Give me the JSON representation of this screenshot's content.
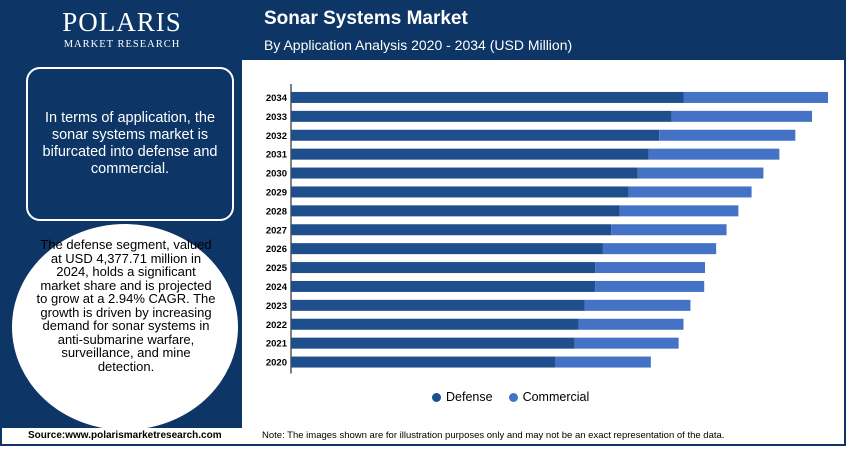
{
  "brand": {
    "name": "POLARIS",
    "tagline": "MARKET RESEARCH"
  },
  "header": {
    "title": "Sonar Systems Market",
    "subtitle": "By Application Analysis 2020 - 2034 (USD Million)"
  },
  "sidebar": {
    "box_text": "In terms of application, the sonar systems market is bifurcated into defense and commercial.",
    "oval_text": "The defense segment, valued at USD 4,377.71 million in 2024, holds a significant market share and is projected to grow at a 2.94% CAGR. The growth is driven by increasing demand for sonar systems in anti-submarine warfare, surveillance, and mine detection."
  },
  "footer": {
    "source": "Source:www.polarismarketresearch.com",
    "note": "Note: The images shown are for illustration purposes only and may not be an exact representation of the data."
  },
  "colors": {
    "navy": "#0d3566",
    "defense": "#1f4e8c",
    "commercial": "#4472c4"
  },
  "chart_data": {
    "type": "bar",
    "orientation": "horizontal",
    "stacked": true,
    "categories": [
      "2034",
      "2033",
      "2032",
      "2031",
      "2030",
      "2029",
      "2028",
      "2027",
      "2026",
      "2025",
      "2024",
      "2023",
      "2022",
      "2021",
      "2020"
    ],
    "series": [
      {
        "name": "Defense",
        "color": "#1f4e8c",
        "values": [
          5650,
          5480,
          5300,
          5150,
          4990,
          4860,
          4730,
          4610,
          4490,
          4380,
          4378,
          4230,
          4140,
          4080,
          3800
        ]
      },
      {
        "name": "Commercial",
        "color": "#4472c4",
        "values": [
          2080,
          2020,
          1960,
          1880,
          1810,
          1770,
          1710,
          1660,
          1630,
          1580,
          1570,
          1520,
          1510,
          1500,
          1380
        ]
      }
    ],
    "legend_position": "bottom",
    "grid": false
  }
}
